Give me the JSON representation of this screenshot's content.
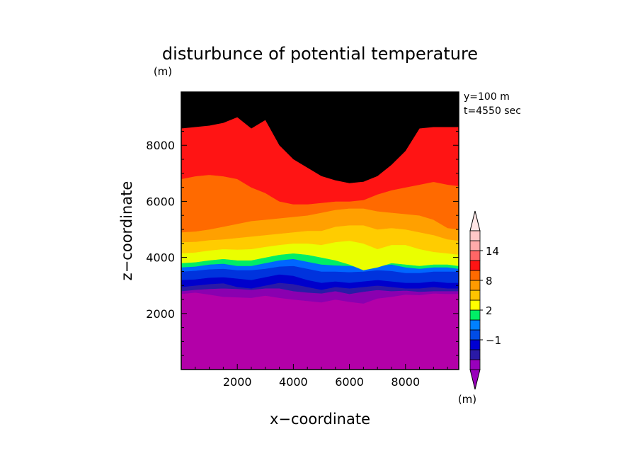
{
  "chart_data": {
    "type": "filled-contour",
    "title": "disturbunce of potential temperature",
    "unit_label": "(m)",
    "info_lines": [
      "y=100 m",
      "t=4550 sec"
    ],
    "xlabel": "x−coordinate",
    "ylabel": "z−coordinate",
    "xlim": [
      0,
      9900
    ],
    "ylim": [
      0,
      9900
    ],
    "xticks": [
      2000,
      4000,
      6000,
      8000
    ],
    "yticks": [
      2000,
      4000,
      6000,
      8000
    ],
    "x": [
      0,
      500,
      1000,
      1500,
      2000,
      2500,
      3000,
      3500,
      4000,
      4500,
      5000,
      5500,
      6000,
      6500,
      7000,
      7500,
      8000,
      8500,
      9000,
      9500,
      9900
    ],
    "boundaries": [
      {
        "z": [
          2700,
          2750,
          2680,
          2600,
          2580,
          2560,
          2640,
          2560,
          2500,
          2450,
          2400,
          2500,
          2420,
          2360,
          2540,
          2600,
          2680,
          2660,
          2720,
          2700,
          2700
        ]
      },
      {
        "z": [
          2800,
          2850,
          2880,
          2900,
          2880,
          2850,
          2900,
          2900,
          2800,
          2750,
          2720,
          2800,
          2700,
          2780,
          2840,
          2800,
          2820,
          2780,
          2800,
          2800,
          2800
        ]
      },
      {
        "z": [
          2950,
          3000,
          3050,
          3080,
          2950,
          2900,
          3000,
          3100,
          3050,
          2950,
          2850,
          2950,
          2900,
          2950,
          3000,
          2950,
          2900,
          2900,
          2950,
          2900,
          2900
        ]
      },
      {
        "z": [
          3200,
          3220,
          3280,
          3300,
          3250,
          3200,
          3300,
          3400,
          3350,
          3200,
          3100,
          3150,
          3100,
          3150,
          3200,
          3150,
          3100,
          3100,
          3150,
          3100,
          3100
        ]
      },
      {
        "z": [
          3500,
          3530,
          3580,
          3600,
          3550,
          3550,
          3600,
          3680,
          3700,
          3600,
          3500,
          3500,
          3480,
          3500,
          3550,
          3520,
          3450,
          3450,
          3500,
          3500,
          3500
        ]
      },
      {
        "z": [
          3650,
          3680,
          3750,
          3780,
          3700,
          3700,
          3800,
          3900,
          3950,
          3850,
          3750,
          3720,
          3700,
          3650,
          3700,
          3750,
          3650,
          3600,
          3650,
          3650,
          3600
        ]
      },
      {
        "z": [
          3800,
          3830,
          3900,
          3950,
          3900,
          3900,
          4000,
          4100,
          4150,
          4100,
          4000,
          3900,
          3750,
          3550,
          3650,
          3800,
          3750,
          3700,
          3750,
          3750,
          3700
        ]
      },
      {
        "z": [
          4150,
          4180,
          4250,
          4300,
          4280,
          4300,
          4380,
          4450,
          4500,
          4500,
          4450,
          4550,
          4600,
          4500,
          4300,
          4450,
          4450,
          4300,
          4200,
          4150,
          4100
        ]
      },
      {
        "z": [
          4550,
          4560,
          4620,
          4650,
          4700,
          4750,
          4800,
          4850,
          4900,
          4950,
          4950,
          5100,
          5150,
          5150,
          5000,
          5050,
          5000,
          4900,
          4800,
          4650,
          4600
        ]
      },
      {
        "z": [
          4900,
          4930,
          5000,
          5100,
          5200,
          5300,
          5350,
          5400,
          5450,
          5500,
          5600,
          5700,
          5750,
          5750,
          5650,
          5600,
          5550,
          5500,
          5350,
          5050,
          5000
        ]
      },
      {
        "z": [
          6800,
          6900,
          6950,
          6900,
          6800,
          6500,
          6300,
          6000,
          5900,
          5900,
          5950,
          6000,
          6000,
          6050,
          6250,
          6400,
          6500,
          6600,
          6700,
          6600,
          6550
        ]
      },
      {
        "z": [
          8600,
          8650,
          8700,
          8800,
          9000,
          8600,
          8900,
          8000,
          7500,
          7200,
          6900,
          6750,
          6650,
          6700,
          6900,
          7300,
          7800,
          8600,
          8650,
          8650,
          8650
        ]
      }
    ],
    "legend": {
      "title": "(m)",
      "tick_labels": [
        {
          "label": "−1",
          "after_color_index": 2
        },
        {
          "label": "2",
          "after_color_index": 5
        },
        {
          "label": "8",
          "after_color_index": 8
        },
        {
          "label": "14",
          "after_color_index": 11
        }
      ],
      "colors": [
        "#9900bb",
        "#2a1aa6",
        "#0000d2",
        "#004ce6",
        "#0080ff",
        "#00ee66",
        "#ffff00",
        "#ffc400",
        "#ff9a00",
        "#ff6a00",
        "#ff1414",
        "#ff6666",
        "#ffaaaa",
        "#ffc8c8"
      ],
      "under_color": "#9900bb",
      "over_color": "#ffe6e6"
    },
    "region_colors": [
      "#b300a8",
      "#8a00b0",
      "#2a1aa6",
      "#0000cc",
      "#0033dd",
      "#0066ff",
      "#00ee66",
      "#eaff00",
      "#ffcc00",
      "#ffa000",
      "#ff6a00",
      "#ff1414"
    ]
  }
}
